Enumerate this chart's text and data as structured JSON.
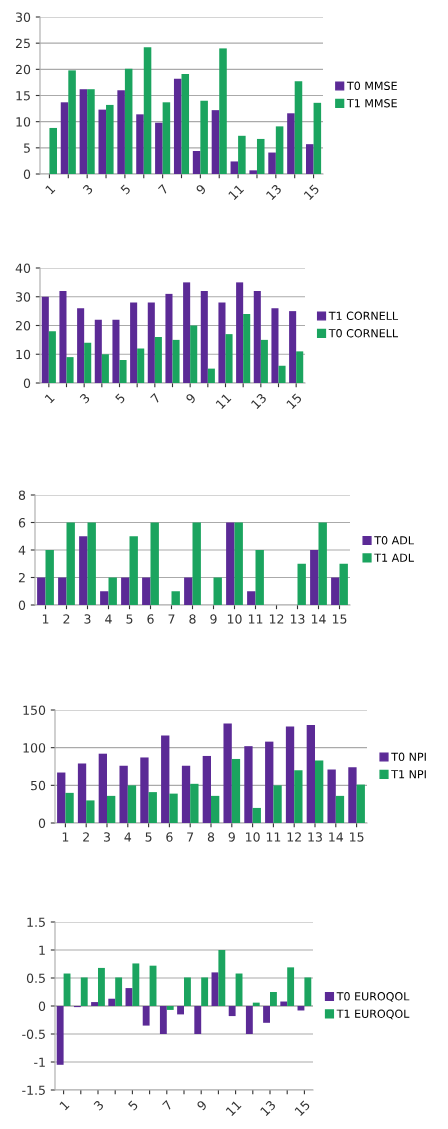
{
  "chart_data": [
    {
      "type": "bar",
      "categories": [
        "1",
        null,
        "3",
        null,
        "5",
        null,
        "7",
        null,
        "9",
        null,
        "11",
        null,
        "13",
        null,
        "15"
      ],
      "ylim": [
        0,
        30
      ],
      "yticks": [
        0,
        5,
        10,
        15,
        20,
        25,
        30
      ],
      "grid": "y",
      "legend": "right",
      "series": [
        {
          "name": "T0 MMSE",
          "color": "#5b2a96",
          "values": [
            0,
            13.7,
            16.2,
            12.3,
            16,
            11.4,
            9.8,
            18.2,
            4.4,
            12.2,
            2.4,
            0.7,
            4.1,
            11.6,
            5.7
          ]
        },
        {
          "name": "T1 MMSE",
          "color": "#1ba45f",
          "values": [
            8.8,
            19.8,
            16.2,
            13.2,
            20.1,
            24.2,
            13.7,
            19.1,
            14,
            24,
            7.3,
            6.7,
            9.1,
            17.7,
            13.6
          ]
        }
      ]
    },
    {
      "type": "bar",
      "categories": [
        "1",
        null,
        "3",
        null,
        "5",
        null,
        "7",
        null,
        "9",
        null,
        "11",
        null,
        "13",
        null,
        "15"
      ],
      "ylim": [
        0,
        40
      ],
      "yticks": [
        0,
        10,
        20,
        30,
        40
      ],
      "grid": "y",
      "legend": "right",
      "series": [
        {
          "name": "T1 CORNELL",
          "color": "#5b2a96",
          "values": [
            30,
            32,
            26,
            22,
            22,
            28,
            28,
            31,
            35,
            32,
            28,
            35,
            32,
            26,
            25
          ]
        },
        {
          "name": "T0 CORNELL",
          "color": "#1ba45f",
          "values": [
            18,
            9,
            14,
            10,
            8,
            12,
            16,
            15,
            20,
            5,
            17,
            24,
            15,
            6,
            11
          ]
        }
      ]
    },
    {
      "type": "bar",
      "categories": [
        "1",
        "2",
        "3",
        "4",
        "5",
        "6",
        "7",
        "8",
        "9",
        "10",
        "11",
        "12",
        "13",
        "14",
        "15"
      ],
      "ylim": [
        0,
        8
      ],
      "yticks": [
        0,
        2,
        4,
        6,
        8
      ],
      "grid": "y",
      "legend": "right",
      "series": [
        {
          "name": "T0 ADL",
          "color": "#5b2a96",
          "values": [
            2,
            2,
            5,
            1,
            2,
            2,
            0,
            2,
            0,
            6,
            1,
            0,
            0,
            4,
            2
          ]
        },
        {
          "name": "T1 ADL",
          "color": "#1ba45f",
          "values": [
            4,
            6,
            6,
            2,
            5,
            6,
            1,
            6,
            2,
            6,
            4,
            0,
            3,
            6,
            3
          ]
        }
      ]
    },
    {
      "type": "bar",
      "categories": [
        "1",
        "2",
        "3",
        "4",
        "5",
        "6",
        "7",
        "8",
        "9",
        "10",
        "11",
        "12",
        "13",
        "14",
        "15"
      ],
      "ylim": [
        0,
        150
      ],
      "yticks": [
        0,
        50,
        100,
        150
      ],
      "grid": "y",
      "legend": "right",
      "series": [
        {
          "name": "T0 NPI",
          "color": "#5b2a96",
          "values": [
            67,
            79,
            92,
            76,
            87,
            116,
            76,
            89,
            132,
            102,
            108,
            128,
            130,
            71,
            74
          ]
        },
        {
          "name": "T1 NPI",
          "color": "#1ba45f",
          "values": [
            40,
            30,
            36,
            50,
            41,
            39,
            52,
            36,
            85,
            20,
            50,
            70,
            83,
            36,
            51
          ]
        }
      ]
    },
    {
      "type": "bar",
      "categories": [
        "1",
        null,
        "3",
        null,
        "5",
        null,
        "7",
        null,
        "9",
        null,
        "11",
        null,
        "13",
        null,
        "15"
      ],
      "ylim": [
        -1.5,
        1.5
      ],
      "yticks": [
        {
          "value": -1.5,
          "label": "-1.5"
        },
        {
          "value": -1,
          "label": "-1"
        },
        {
          "value": -0.5,
          "label": "-0.5"
        },
        0,
        0.5,
        1,
        1.5
      ],
      "grid": "y",
      "legend": "right",
      "series": [
        {
          "name": "T0 EUROQOL",
          "color": "#5b2a96",
          "values": [
            -1.05,
            -0.02,
            0.07,
            0.13,
            0.32,
            -0.35,
            -0.5,
            -0.15,
            -0.5,
            0.6,
            -0.18,
            -0.5,
            -0.3,
            0.08,
            -0.08
          ]
        },
        {
          "name": "T1 EUROQOL",
          "color": "#1ba45f",
          "values": [
            0.58,
            0.51,
            0.68,
            0.51,
            0.76,
            0.72,
            -0.07,
            0.51,
            0.51,
            1.0,
            0.58,
            0.06,
            0.25,
            0.69,
            0.51
          ]
        }
      ]
    }
  ]
}
